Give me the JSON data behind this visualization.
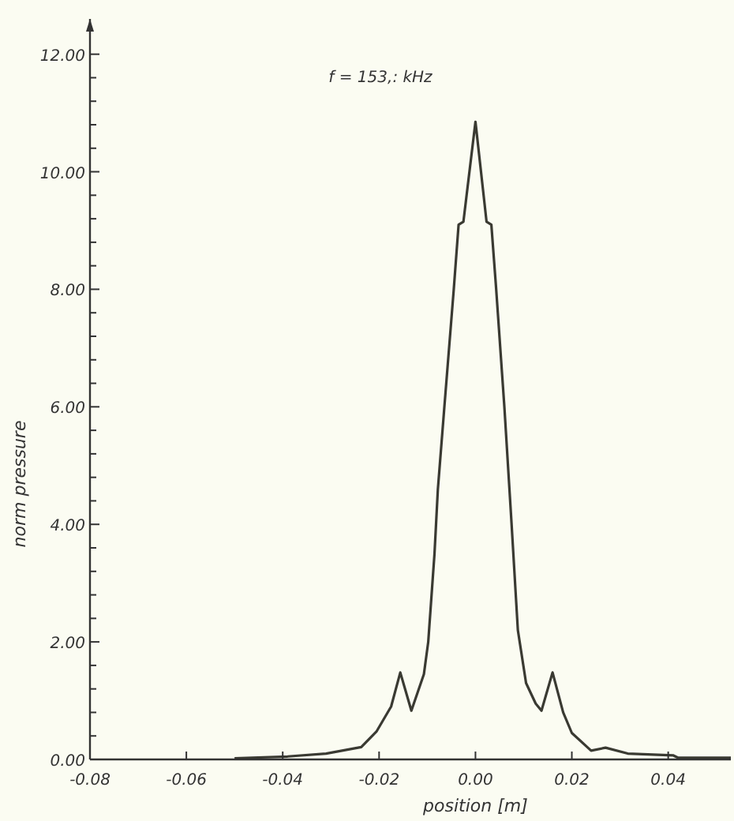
{
  "chart_data": {
    "type": "line",
    "title": "f = 153,: kHz",
    "xlabel": "position  [m]",
    "ylabel": "norm  pressure",
    "x": [
      -0.05,
      -0.039,
      -0.031,
      -0.0237,
      -0.0205,
      -0.0175,
      -0.0156,
      -0.0133,
      -0.0107,
      -0.0098,
      -0.0085,
      -0.0078,
      -0.0065,
      -0.0045,
      -0.0035,
      -0.0025,
      0.0,
      0.0023,
      0.0033,
      0.0043,
      0.006,
      0.0075,
      0.0088,
      0.0105,
      0.0125,
      0.0137,
      0.016,
      0.0182,
      0.02,
      0.024,
      0.027,
      0.0316,
      0.041,
      0.042,
      0.053
    ],
    "series": [
      {
        "color": "#3a3a32",
        "values": [
          0.02,
          0.05,
          0.1,
          0.21,
          0.48,
          0.9,
          1.48,
          0.83,
          1.45,
          2.0,
          3.5,
          4.6,
          5.95,
          8.0,
          9.1,
          9.15,
          10.85,
          9.15,
          9.1,
          8.0,
          6.0,
          4.0,
          2.2,
          1.3,
          0.95,
          0.83,
          1.48,
          0.8,
          0.45,
          0.15,
          0.2,
          0.1,
          0.07,
          0.03,
          0.03
        ]
      }
    ],
    "xlim": [
      -0.08,
      0.053
    ],
    "xticks": [
      {
        "value": -0.08,
        "label": "-0.08"
      },
      {
        "value": -0.06,
        "label": "-0.06"
      },
      {
        "value": -0.04,
        "label": "-0.04"
      },
      {
        "value": -0.02,
        "label": "-0.02"
      },
      {
        "value": 0,
        "label": "0.00"
      },
      {
        "value": 0.02,
        "label": "0.02"
      },
      {
        "value": 0.04,
        "label": "0.04"
      }
    ],
    "ylim": [
      0,
      12.6
    ],
    "yticks": [
      {
        "value": 0,
        "label": "0.00"
      },
      {
        "value": 2,
        "label": "2.00"
      },
      {
        "value": 4,
        "label": "4.00"
      },
      {
        "value": 6,
        "label": "6.00"
      },
      {
        "value": 8,
        "label": "8.00"
      },
      {
        "value": 10,
        "label": "10.00"
      },
      {
        "value": 12,
        "label": "12.00"
      },
      {
        "value": 0.4,
        "label": null
      },
      {
        "value": 0.8,
        "label": null
      },
      {
        "value": 1.2,
        "label": null
      },
      {
        "value": 1.6,
        "label": null
      },
      {
        "value": 2.4,
        "label": null
      },
      {
        "value": 2.8,
        "label": null
      },
      {
        "value": 3.2,
        "label": null
      },
      {
        "value": 3.6,
        "label": null
      },
      {
        "value": 4.4,
        "label": null
      },
      {
        "value": 4.8,
        "label": null
      },
      {
        "value": 5.2,
        "label": null
      },
      {
        "value": 5.6,
        "label": null
      },
      {
        "value": 6.4,
        "label": null
      },
      {
        "value": 6.8,
        "label": null
      },
      {
        "value": 7.2,
        "label": null
      },
      {
        "value": 7.6,
        "label": null
      },
      {
        "value": 8.4,
        "label": null
      },
      {
        "value": 8.8,
        "label": null
      },
      {
        "value": 9.2,
        "label": null
      },
      {
        "value": 9.6,
        "label": null
      },
      {
        "value": 10.4,
        "label": null
      },
      {
        "value": 10.8,
        "label": null
      },
      {
        "value": 11.2,
        "label": null
      },
      {
        "value": 11.6,
        "label": null
      }
    ],
    "marker": "none",
    "line_style": "solid"
  }
}
